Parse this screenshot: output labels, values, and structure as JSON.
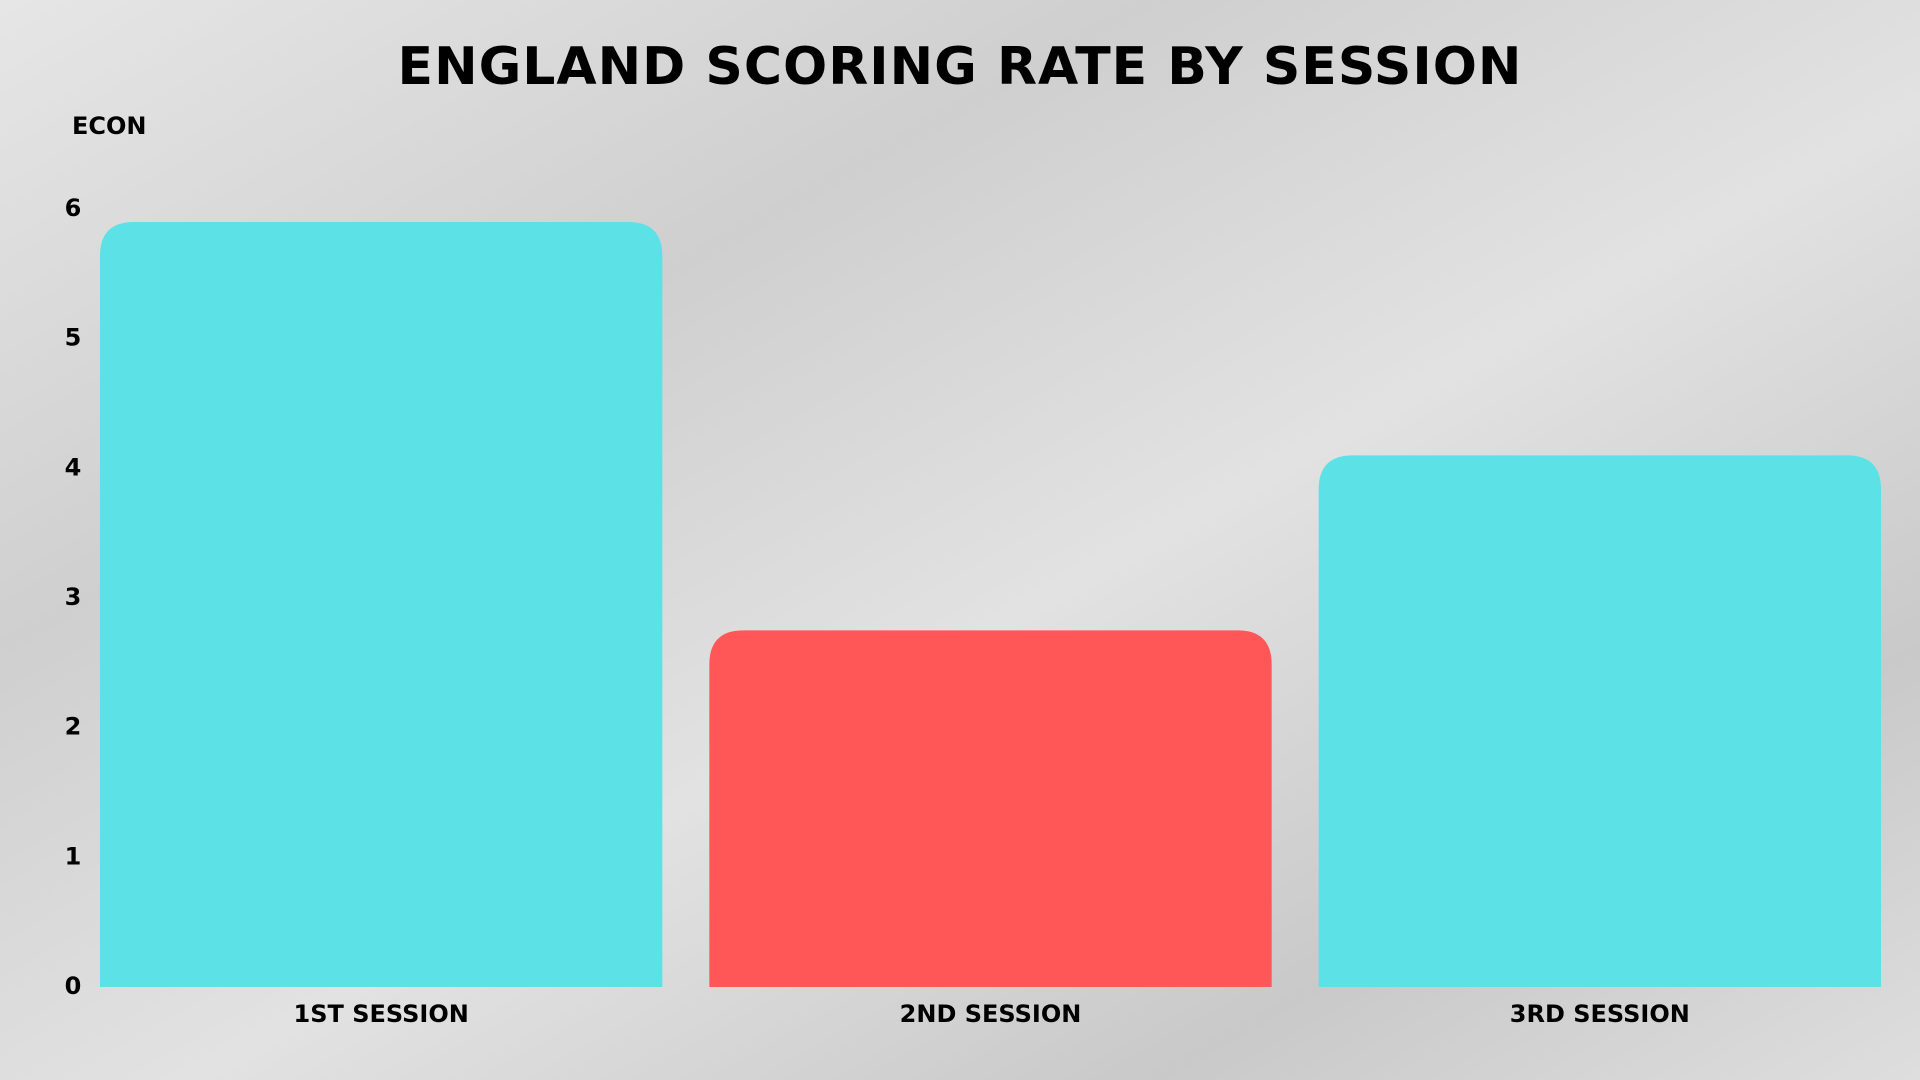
{
  "chart_data": {
    "type": "bar",
    "title": "ENGLAND SCORING RATE BY SESSION",
    "y_label": "ECON",
    "categories": [
      "1ST SESSION",
      "2ND SESSION",
      "3RD SESSION"
    ],
    "values": [
      5.9,
      2.75,
      4.1
    ],
    "colors": [
      "#5ce1e6",
      "#ff5757",
      "#5ce1e6"
    ],
    "ylim": [
      0,
      6
    ],
    "yticks": [
      0,
      1,
      2,
      3,
      4,
      5,
      6
    ],
    "grid": false
  }
}
